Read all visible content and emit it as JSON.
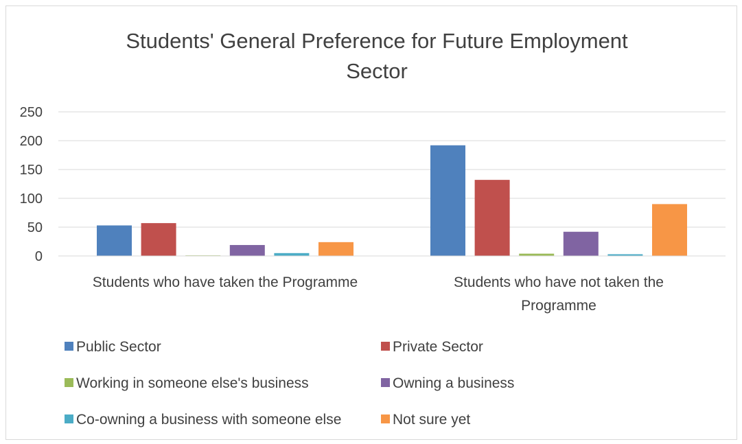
{
  "chart_data": {
    "type": "bar",
    "title": "Students' General Preference for Future Employment Sector",
    "title_lines": [
      "Students' General Preference for Future Employment",
      "Sector"
    ],
    "categories": [
      "Students who have taken the Programme",
      "Students who have not taken the Programme"
    ],
    "category_label_lines": [
      [
        "Students who have taken the Programme"
      ],
      [
        "Students who have not taken the",
        "Programme"
      ]
    ],
    "series": [
      {
        "name": "Public Sector",
        "color": "#4f81bd",
        "values": [
          53,
          192
        ]
      },
      {
        "name": "Private Sector",
        "color": "#c0504d",
        "values": [
          57,
          132
        ]
      },
      {
        "name": "Working in someone else's business",
        "color": "#9bbb59",
        "values": [
          1,
          4
        ]
      },
      {
        "name": "Owning a business",
        "color": "#8064a2",
        "values": [
          19,
          42
        ]
      },
      {
        "name": "Co-owning a business with someone else",
        "color": "#4bacc6",
        "values": [
          5,
          3
        ]
      },
      {
        "name": "Not sure yet",
        "color": "#f79646",
        "values": [
          24,
          90
        ]
      }
    ],
    "ylim": [
      0,
      250
    ],
    "yticks": [
      "0",
      "50",
      "100",
      "150",
      "200",
      "250"
    ],
    "grid": true,
    "gridline_color": "#d9d9d9",
    "legend_position": "bottom"
  }
}
